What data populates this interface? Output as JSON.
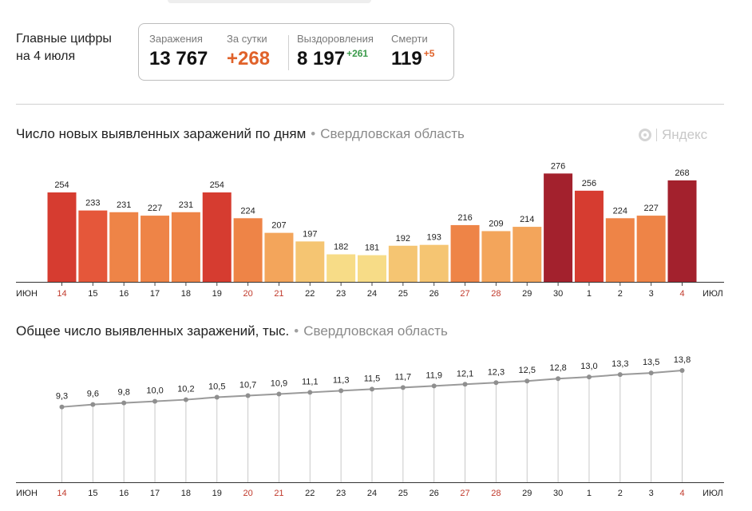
{
  "headline": {
    "line1": "Главные цифры",
    "line2": "на 4 июля"
  },
  "stats": {
    "infections": {
      "label": "Заражения",
      "value": "13 767"
    },
    "daily": {
      "label": "За сутки",
      "value": "+268"
    },
    "recovered": {
      "label": "Выздоровления",
      "value": "8 197",
      "delta": "+261"
    },
    "deaths": {
      "label": "Смерти",
      "value": "119",
      "delta": "+5"
    }
  },
  "logo_text": "Яндекс",
  "colors": {
    "dark_red": "#a3212d",
    "red": "#d63c30",
    "red_orange": "#e5573a",
    "orange": "#ee8447",
    "light_orange": "#f3a55b",
    "yellow_orange": "#f5c572",
    "pale_yellow": "#f7dc87",
    "weekend": "#c0392b",
    "green": "#3a9a4a",
    "accent": "#e0622a"
  },
  "chart_data": [
    {
      "type": "bar",
      "title": "Число новых выявленных заражений по дням",
      "region": "Свердловская область",
      "categories": [
        "14",
        "15",
        "16",
        "17",
        "18",
        "19",
        "20",
        "21",
        "22",
        "23",
        "24",
        "25",
        "26",
        "27",
        "28",
        "29",
        "30",
        "1",
        "2",
        "3",
        "4"
      ],
      "weekend": [
        true,
        false,
        false,
        false,
        false,
        false,
        true,
        true,
        false,
        false,
        false,
        false,
        false,
        true,
        true,
        false,
        false,
        false,
        false,
        false,
        true
      ],
      "month_start_label": "ИЮН",
      "month_end_label": "ИЮЛ",
      "values": [
        254,
        233,
        231,
        227,
        231,
        254,
        224,
        207,
        197,
        182,
        181,
        192,
        193,
        216,
        209,
        214,
        276,
        256,
        224,
        227,
        268
      ],
      "bar_colors": [
        "red",
        "red_orange",
        "orange",
        "orange",
        "orange",
        "red",
        "orange",
        "light_orange",
        "yellow_orange",
        "pale_yellow",
        "pale_yellow",
        "yellow_orange",
        "yellow_orange",
        "orange",
        "light_orange",
        "light_orange",
        "dark_red",
        "red",
        "orange",
        "orange",
        "dark_red"
      ],
      "ylim": [
        150,
        280
      ]
    },
    {
      "type": "line",
      "title": "Общее число выявленных заражений, тыс.",
      "region": "Свердловская область",
      "categories": [
        "14",
        "15",
        "16",
        "17",
        "18",
        "19",
        "20",
        "21",
        "22",
        "23",
        "24",
        "25",
        "26",
        "27",
        "28",
        "29",
        "30",
        "1",
        "2",
        "3",
        "4"
      ],
      "weekend": [
        true,
        false,
        false,
        false,
        false,
        false,
        true,
        true,
        false,
        false,
        false,
        false,
        false,
        true,
        true,
        false,
        false,
        false,
        false,
        false,
        true
      ],
      "month_start_label": "ИЮН",
      "month_end_label": "ИЮЛ",
      "values": [
        9.3,
        9.6,
        9.8,
        10.0,
        10.2,
        10.5,
        10.7,
        10.9,
        11.1,
        11.3,
        11.5,
        11.7,
        11.9,
        12.1,
        12.3,
        12.5,
        12.8,
        13.0,
        13.3,
        13.5,
        13.8
      ],
      "labels": [
        "9,3",
        "9,6",
        "9,8",
        "10,0",
        "10,2",
        "10,5",
        "10,7",
        "10,9",
        "11,1",
        "11,3",
        "11,5",
        "11,7",
        "11,9",
        "12,1",
        "12,3",
        "12,5",
        "12,8",
        "13,0",
        "13,3",
        "13,5",
        "13,8"
      ],
      "ylim": [
        0,
        14.2
      ]
    }
  ]
}
